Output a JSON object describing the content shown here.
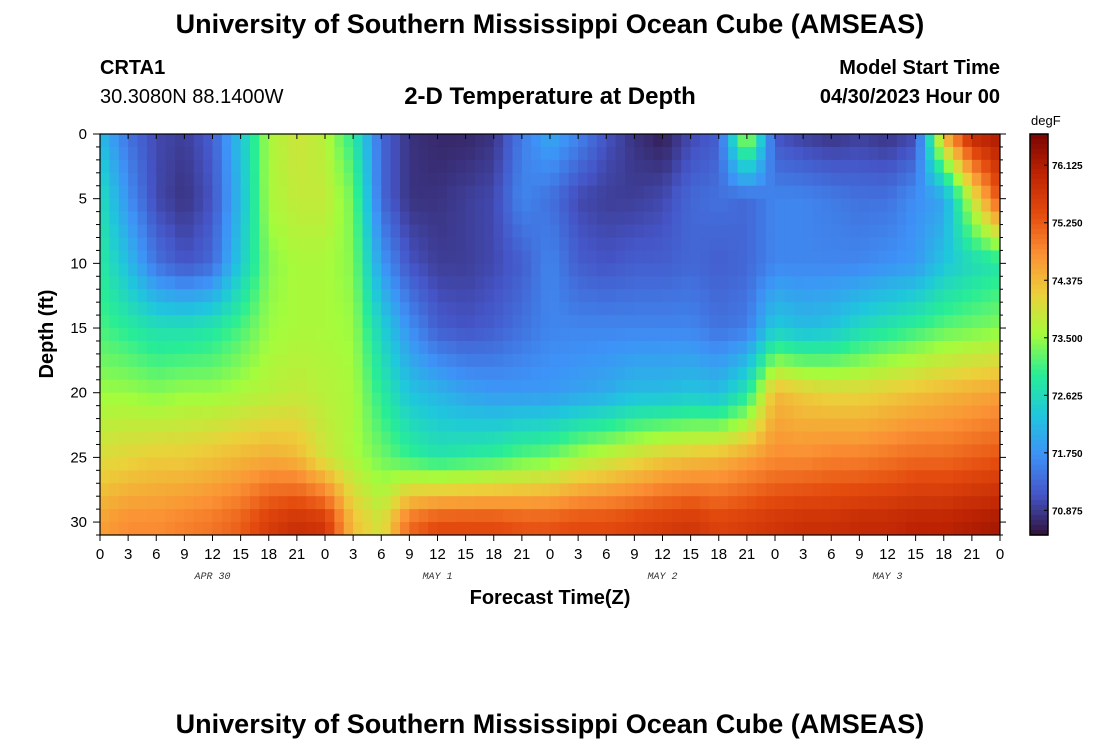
{
  "page": {
    "title": "University of Southern Mississippi Ocean Cube (AMSEAS)",
    "station_id": "CRTA1",
    "station_coords": "30.3080N  88.1400W",
    "plot_title": "2-D Temperature at Depth",
    "model_start_label": "Model Start Time",
    "model_start_value": "04/30/2023 Hour 00",
    "bottom_title": "University of Southern Mississippi Ocean Cube (AMSEAS)"
  },
  "chart_data": {
    "type": "heatmap",
    "title": "2-D Temperature at Depth",
    "xlabel": "Forecast Time(Z)",
    "ylabel": "Depth (ft)",
    "units": "degF",
    "xlim": [
      0,
      96
    ],
    "ylim": [
      31,
      0
    ],
    "x_tick_values": [
      0,
      3,
      6,
      9,
      12,
      15,
      18,
      21,
      24,
      27,
      30,
      33,
      36,
      39,
      42,
      45,
      48,
      51,
      54,
      57,
      60,
      63,
      66,
      69,
      72,
      75,
      78,
      81,
      84,
      87,
      90,
      93,
      96
    ],
    "x_tick_labels": [
      "0",
      "3",
      "6",
      "9",
      "12",
      "15",
      "18",
      "21",
      "0",
      "3",
      "6",
      "9",
      "12",
      "15",
      "18",
      "21",
      "0",
      "3",
      "6",
      "9",
      "12",
      "15",
      "18",
      "21",
      "0",
      "3",
      "6",
      "9",
      "12",
      "15",
      "18",
      "21",
      "0"
    ],
    "date_labels": [
      {
        "hour": 12,
        "label": "APR 30"
      },
      {
        "hour": 36,
        "label": "MAY 1"
      },
      {
        "hour": 60,
        "label": "MAY 2"
      },
      {
        "hour": 84,
        "label": "MAY 3"
      }
    ],
    "y_ticks": [
      0,
      5,
      10,
      15,
      20,
      25,
      30
    ],
    "colorbar": {
      "min": 70.5,
      "max": 76.6,
      "ticks": [
        "76.125",
        "75.250",
        "74.375",
        "73.500",
        "72.625",
        "71.750",
        "70.875"
      ]
    },
    "grid_hours": [
      0,
      3,
      6,
      9,
      12,
      15,
      18,
      21,
      24,
      27,
      30,
      33,
      36,
      39,
      42,
      45,
      48,
      51,
      54,
      57,
      60,
      63,
      66,
      69,
      72,
      75,
      78,
      81,
      84,
      87,
      90,
      93,
      96
    ],
    "grid_depths": [
      0,
      5,
      10,
      15,
      20,
      25,
      30
    ],
    "temperature": [
      [
        72.2,
        71.4,
        71.0,
        70.9,
        71.2,
        72.3,
        73.6,
        73.9,
        73.7,
        72.9,
        71.3,
        70.8,
        70.7,
        70.7,
        70.8,
        71.5,
        72.0,
        71.6,
        71.1,
        70.8,
        70.6,
        71.0,
        71.2,
        73.9,
        71.1,
        70.9,
        70.8,
        70.9,
        70.8,
        71.0,
        74.5,
        76.0,
        76.2
      ],
      [
        72.7,
        71.7,
        71.0,
        70.8,
        71.1,
        72.2,
        73.6,
        73.8,
        73.8,
        73.3,
        71.3,
        70.8,
        70.8,
        70.9,
        71.0,
        71.6,
        71.4,
        71.0,
        70.9,
        70.9,
        71.0,
        71.3,
        71.4,
        71.3,
        71.6,
        71.6,
        71.5,
        71.4,
        71.4,
        71.7,
        71.9,
        73.8,
        75.4
      ],
      [
        72.9,
        72.2,
        71.4,
        71.1,
        71.3,
        72.4,
        73.4,
        73.6,
        73.6,
        73.4,
        71.8,
        71.1,
        70.9,
        70.9,
        71.0,
        71.2,
        71.6,
        71.2,
        71.1,
        71.2,
        71.2,
        71.3,
        71.2,
        71.3,
        71.6,
        71.6,
        71.6,
        71.6,
        71.7,
        71.8,
        72.3,
        72.6,
        72.8
      ],
      [
        73.1,
        72.9,
        72.7,
        72.7,
        72.8,
        73.1,
        73.5,
        73.6,
        73.6,
        73.5,
        72.5,
        71.7,
        71.2,
        71.1,
        71.2,
        71.4,
        71.6,
        71.6,
        71.6,
        71.6,
        71.6,
        71.6,
        71.4,
        71.5,
        72.4,
        72.2,
        72.3,
        72.6,
        72.8,
        73.0,
        73.2,
        73.3,
        73.4
      ],
      [
        73.5,
        73.5,
        73.4,
        73.5,
        73.5,
        73.6,
        73.7,
        73.8,
        73.7,
        73.6,
        72.9,
        72.3,
        72.1,
        71.9,
        71.8,
        71.8,
        71.8,
        71.9,
        72.0,
        72.2,
        72.2,
        72.3,
        72.2,
        72.8,
        74.4,
        74.2,
        74.1,
        74.1,
        74.2,
        74.3,
        74.4,
        74.5,
        74.6
      ],
      [
        74.0,
        74.1,
        74.2,
        74.2,
        74.3,
        74.4,
        74.5,
        74.4,
        73.9,
        73.6,
        73.3,
        73.0,
        72.8,
        72.9,
        73.0,
        73.2,
        73.3,
        73.6,
        73.8,
        74.0,
        74.2,
        74.3,
        74.4,
        74.6,
        74.8,
        74.8,
        74.9,
        74.9,
        75.0,
        75.1,
        75.1,
        75.2,
        75.3
      ],
      [
        74.6,
        74.8,
        74.8,
        74.9,
        75.0,
        75.2,
        75.6,
        75.8,
        75.7,
        74.3,
        73.9,
        75.1,
        75.4,
        75.4,
        75.4,
        75.3,
        75.3,
        75.4,
        75.4,
        75.5,
        75.6,
        75.7,
        75.5,
        75.6,
        75.7,
        75.8,
        75.8,
        75.9,
        75.9,
        76.0,
        76.0,
        76.1,
        76.2
      ]
    ]
  }
}
